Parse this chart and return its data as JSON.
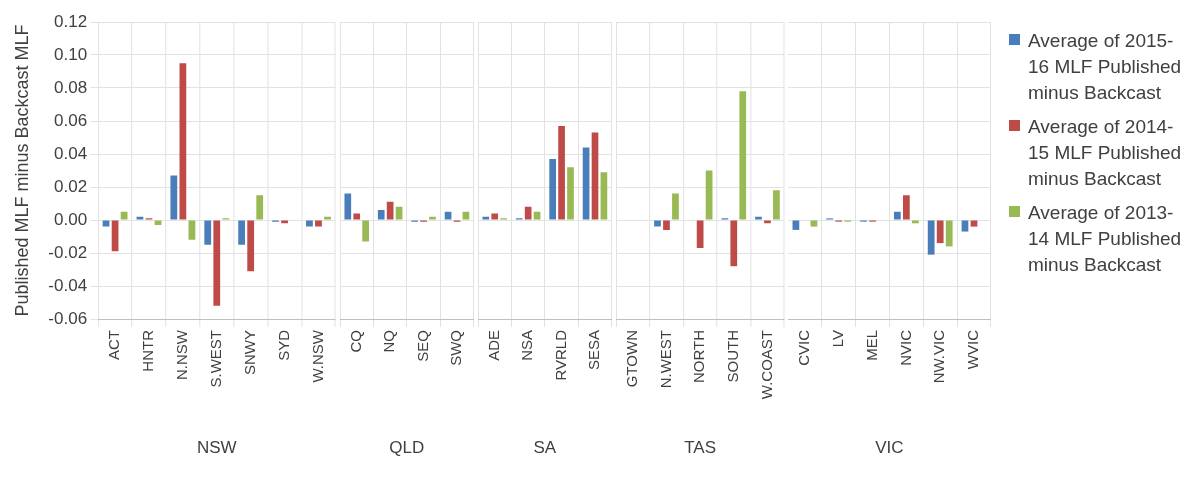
{
  "chart_data": [
    {
      "type": "bar",
      "ylabel": "Published MLF minus Backcast MLF",
      "xlabel": "NSW",
      "categories": [
        "ACT",
        "HNTR",
        "N.NSW",
        "S.WEST",
        "SNWY",
        "SYD",
        "W.NSW"
      ],
      "series": [
        {
          "color": "#4a7ebb",
          "values": [
            -0.004,
            0.002,
            0.027,
            -0.015,
            -0.015,
            -0.001,
            -0.004
          ]
        },
        {
          "color": "#be4b48",
          "values": [
            -0.019,
            0.001,
            0.095,
            -0.052,
            -0.031,
            -0.002,
            -0.004
          ]
        },
        {
          "color": "#98b954",
          "values": [
            0.005,
            -0.003,
            -0.012,
            0.001,
            0.015,
            0,
            0.002
          ]
        }
      ],
      "ylim": [
        -0.06,
        0.12
      ],
      "yticks": [
        {
          "value": -0.06,
          "label": "-0.06"
        },
        {
          "value": -0.04,
          "label": "-0.04"
        },
        {
          "value": -0.02,
          "label": "-0.02"
        },
        {
          "value": 0,
          "label": "0.00"
        },
        {
          "value": 0.02,
          "label": "0.02"
        },
        {
          "value": 0.04,
          "label": "0.04"
        },
        {
          "value": 0.06,
          "label": "0.06"
        },
        {
          "value": 0.08,
          "label": "0.08"
        },
        {
          "value": 0.1,
          "label": "0.10"
        },
        {
          "value": 0.12,
          "label": "0.12"
        }
      ],
      "grid": true
    },
    {
      "type": "bar",
      "xlabel": "QLD",
      "categories": [
        "CQ",
        "NQ",
        "SEQ",
        "SWQ"
      ],
      "series": [
        {
          "color": "#4a7ebb",
          "values": [
            0.016,
            0.006,
            -0.001,
            0.005
          ]
        },
        {
          "color": "#be4b48",
          "values": [
            0.004,
            0.011,
            -0.001,
            -0.001
          ]
        },
        {
          "color": "#98b954",
          "values": [
            -0.013,
            0.008,
            0.002,
            0.005
          ]
        }
      ],
      "ylim": [
        -0.06,
        0.12
      ],
      "yticks": [
        -0.06,
        -0.04,
        -0.02,
        0,
        0.02,
        0.04,
        0.06,
        0.08,
        0.1,
        0.12
      ],
      "tick_labels": "x",
      "grid": true
    },
    {
      "type": "bar",
      "xlabel": "SA",
      "categories": [
        "ADE",
        "NSA",
        "RVRLD",
        "SESA"
      ],
      "series": [
        {
          "color": "#4a7ebb",
          "values": [
            0.002,
            0.001,
            0.037,
            0.044
          ]
        },
        {
          "color": "#be4b48",
          "values": [
            0.004,
            0.008,
            0.057,
            0.053
          ]
        },
        {
          "color": "#98b954",
          "values": [
            0.001,
            0.005,
            0.032,
            0.029
          ]
        }
      ],
      "ylim": [
        -0.06,
        0.12
      ],
      "yticks": [
        -0.06,
        -0.04,
        -0.02,
        0,
        0.02,
        0.04,
        0.06,
        0.08,
        0.1,
        0.12
      ],
      "tick_labels": "x",
      "grid": true
    },
    {
      "type": "bar",
      "xlabel": "TAS",
      "categories": [
        "GTOWN",
        "N.WEST",
        "NORTH",
        "SOUTH",
        "W.COAST"
      ],
      "series": [
        {
          "color": "#4a7ebb",
          "values": [
            0,
            -0.004,
            0,
            0.001,
            0.002
          ]
        },
        {
          "color": "#be4b48",
          "values": [
            0,
            -0.006,
            -0.017,
            -0.028,
            -0.002
          ]
        },
        {
          "color": "#98b954",
          "values": [
            0,
            0.016,
            0.03,
            0.078,
            0.018
          ]
        }
      ],
      "ylim": [
        -0.06,
        0.12
      ],
      "yticks": [
        -0.06,
        -0.04,
        -0.02,
        0,
        0.02,
        0.04,
        0.06,
        0.08,
        0.1,
        0.12
      ],
      "tick_labels": "x",
      "grid": true
    },
    {
      "type": "bar",
      "xlabel": "VIC",
      "categories": [
        "CVIC",
        "LV",
        "MEL",
        "NVIC",
        "NW.VIC",
        "WVIC"
      ],
      "series": [
        {
          "name": "Average of 2015-16 MLF Published minus Backcast",
          "color": "#4a7ebb",
          "values": [
            -0.006,
            0.001,
            -0.001,
            0.005,
            -0.021,
            -0.007
          ]
        },
        {
          "name": "Average of 2014-15 MLF Published minus Backcast",
          "color": "#be4b48",
          "values": [
            0,
            -0.001,
            -0.001,
            0.015,
            -0.014,
            -0.004
          ]
        },
        {
          "name": "Average of 2013-14 MLF Published minus Backcast",
          "color": "#98b954",
          "values": [
            -0.004,
            -0.001,
            0,
            -0.002,
            -0.016,
            0
          ]
        }
      ],
      "ylim": [
        -0.06,
        0.12
      ],
      "yticks": [
        -0.06,
        -0.04,
        -0.02,
        0,
        0.02,
        0.04,
        0.06,
        0.08,
        0.1,
        0.12
      ],
      "tick_labels": "x",
      "grid": true,
      "legend": "right"
    }
  ]
}
